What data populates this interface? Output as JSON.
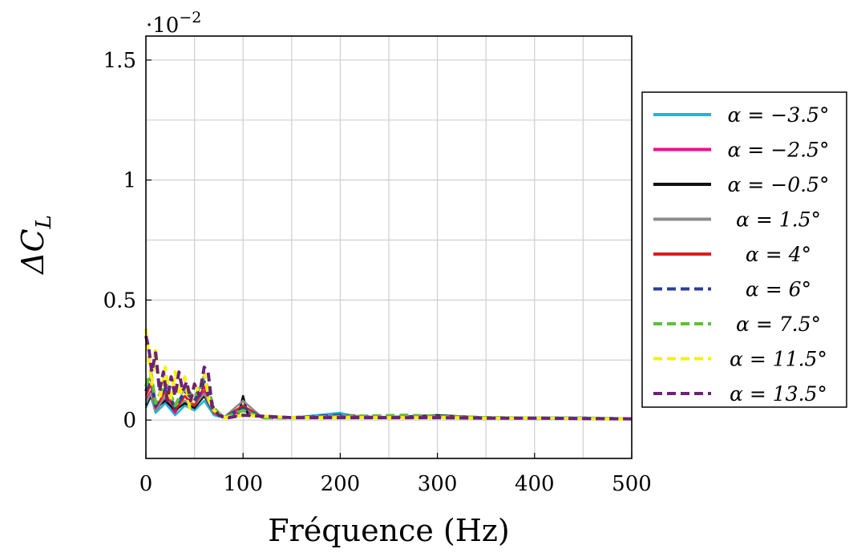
{
  "chart_data": {
    "type": "line",
    "title": "",
    "xlabel": "Fréquence (Hz)",
    "ylabel": "ΔC_L",
    "ylabel_base": "ΔC",
    "ylabel_sub": "L",
    "y_multiplier_base": "·10",
    "y_multiplier_exp": "−2",
    "xlim": [
      0,
      500
    ],
    "ylim": [
      -0.16,
      1.6
    ],
    "grid": true,
    "legend_position": "right",
    "x_ticks": [
      {
        "value": 0,
        "label": "0"
      },
      {
        "value": 100,
        "label": "100"
      },
      {
        "value": 200,
        "label": "200"
      },
      {
        "value": 300,
        "label": "300"
      },
      {
        "value": 400,
        "label": "400"
      },
      {
        "value": 500,
        "label": "500"
      }
    ],
    "y_ticks": [
      {
        "value": 0,
        "label": "0"
      },
      {
        "value": 0.5,
        "label": "0.5"
      },
      {
        "value": 1,
        "label": "1"
      },
      {
        "value": 1.5,
        "label": "1.5"
      }
    ],
    "series": [
      {
        "name": "α = −3.5°",
        "color": "#1fb3e6",
        "dash": false,
        "points": [
          [
            0,
            0.05
          ],
          [
            5,
            0.1
          ],
          [
            10,
            0.03
          ],
          [
            20,
            0.07
          ],
          [
            30,
            0.02
          ],
          [
            40,
            0.06
          ],
          [
            50,
            0.04
          ],
          [
            60,
            0.08
          ],
          [
            70,
            0.02
          ],
          [
            80,
            0.01
          ],
          [
            100,
            0.05
          ],
          [
            120,
            0.01
          ],
          [
            150,
            0.01
          ],
          [
            200,
            0.03
          ],
          [
            220,
            0.01
          ],
          [
            260,
            0.015
          ],
          [
            300,
            0.02
          ],
          [
            350,
            0.01
          ],
          [
            400,
            0.01
          ],
          [
            450,
            0.01
          ],
          [
            500,
            0.005
          ]
        ]
      },
      {
        "name": "α = −2.5°",
        "color": "#e6138c",
        "dash": false,
        "points": [
          [
            0,
            0.08
          ],
          [
            5,
            0.12
          ],
          [
            10,
            0.04
          ],
          [
            20,
            0.09
          ],
          [
            30,
            0.03
          ],
          [
            40,
            0.1
          ],
          [
            50,
            0.05
          ],
          [
            60,
            0.12
          ],
          [
            70,
            0.03
          ],
          [
            80,
            0.01
          ],
          [
            100,
            0.04
          ],
          [
            120,
            0.01
          ],
          [
            150,
            0.01
          ],
          [
            200,
            0.02
          ],
          [
            250,
            0.01
          ],
          [
            300,
            0.015
          ],
          [
            350,
            0.01
          ],
          [
            400,
            0.008
          ],
          [
            450,
            0.008
          ],
          [
            500,
            0.005
          ]
        ]
      },
      {
        "name": "α = −0.5°",
        "color": "#111111",
        "dash": false,
        "points": [
          [
            0,
            0.06
          ],
          [
            5,
            0.1
          ],
          [
            10,
            0.05
          ],
          [
            20,
            0.08
          ],
          [
            30,
            0.04
          ],
          [
            40,
            0.07
          ],
          [
            50,
            0.05
          ],
          [
            60,
            0.1
          ],
          [
            70,
            0.03
          ],
          [
            80,
            0.01
          ],
          [
            95,
            0.02
          ],
          [
            100,
            0.1
          ],
          [
            105,
            0.02
          ],
          [
            150,
            0.01
          ],
          [
            200,
            0.015
          ],
          [
            250,
            0.01
          ],
          [
            300,
            0.02
          ],
          [
            350,
            0.01
          ],
          [
            400,
            0.008
          ],
          [
            450,
            0.008
          ],
          [
            500,
            0.005
          ]
        ]
      },
      {
        "name": "α = 1.5°",
        "color": "#8c8c8c",
        "dash": false,
        "points": [
          [
            0,
            0.07
          ],
          [
            5,
            0.11
          ],
          [
            10,
            0.04
          ],
          [
            20,
            0.1
          ],
          [
            30,
            0.05
          ],
          [
            40,
            0.08
          ],
          [
            50,
            0.06
          ],
          [
            60,
            0.11
          ],
          [
            70,
            0.03
          ],
          [
            80,
            0.01
          ],
          [
            100,
            0.08
          ],
          [
            120,
            0.01
          ],
          [
            150,
            0.01
          ],
          [
            200,
            0.02
          ],
          [
            250,
            0.01
          ],
          [
            300,
            0.015
          ],
          [
            350,
            0.01
          ],
          [
            400,
            0.008
          ],
          [
            450,
            0.008
          ],
          [
            500,
            0.005
          ]
        ]
      },
      {
        "name": "α = 4°",
        "color": "#e11b1b",
        "dash": false,
        "points": [
          [
            0,
            0.1
          ],
          [
            5,
            0.15
          ],
          [
            10,
            0.05
          ],
          [
            20,
            0.12
          ],
          [
            30,
            0.04
          ],
          [
            40,
            0.1
          ],
          [
            50,
            0.06
          ],
          [
            60,
            0.14
          ],
          [
            70,
            0.03
          ],
          [
            80,
            0.01
          ],
          [
            100,
            0.06
          ],
          [
            120,
            0.01
          ],
          [
            150,
            0.01
          ],
          [
            200,
            0.015
          ],
          [
            250,
            0.01
          ],
          [
            300,
            0.015
          ],
          [
            350,
            0.01
          ],
          [
            400,
            0.008
          ],
          [
            450,
            0.008
          ],
          [
            500,
            0.005
          ]
        ]
      },
      {
        "name": "α = 6°",
        "color": "#2c3d99",
        "dash": true,
        "points": [
          [
            0,
            0.12
          ],
          [
            5,
            0.18
          ],
          [
            10,
            0.06
          ],
          [
            20,
            0.14
          ],
          [
            30,
            0.05
          ],
          [
            40,
            0.12
          ],
          [
            50,
            0.08
          ],
          [
            60,
            0.16
          ],
          [
            70,
            0.04
          ],
          [
            80,
            0.01
          ],
          [
            100,
            0.05
          ],
          [
            120,
            0.01
          ],
          [
            150,
            0.01
          ],
          [
            200,
            0.02
          ],
          [
            250,
            0.01
          ],
          [
            300,
            0.015
          ],
          [
            350,
            0.01
          ],
          [
            400,
            0.008
          ],
          [
            450,
            0.008
          ],
          [
            500,
            0.005
          ]
        ]
      },
      {
        "name": "α = 7.5°",
        "color": "#5cbf3a",
        "dash": true,
        "points": [
          [
            0,
            0.14
          ],
          [
            5,
            0.2
          ],
          [
            10,
            0.07
          ],
          [
            20,
            0.16
          ],
          [
            30,
            0.06
          ],
          [
            40,
            0.14
          ],
          [
            50,
            0.09
          ],
          [
            60,
            0.18
          ],
          [
            70,
            0.05
          ],
          [
            80,
            0.01
          ],
          [
            100,
            0.04
          ],
          [
            120,
            0.01
          ],
          [
            150,
            0.01
          ],
          [
            200,
            0.015
          ],
          [
            270,
            0.02
          ],
          [
            300,
            0.015
          ],
          [
            350,
            0.01
          ],
          [
            400,
            0.008
          ],
          [
            450,
            0.008
          ],
          [
            500,
            0.005
          ]
        ]
      },
      {
        "name": "α = 11.5°",
        "color": "#f7ef0f",
        "dash": true,
        "points": [
          [
            0,
            0.38
          ],
          [
            3,
            0.25
          ],
          [
            6,
            0.15
          ],
          [
            10,
            0.3
          ],
          [
            15,
            0.1
          ],
          [
            20,
            0.22
          ],
          [
            25,
            0.08
          ],
          [
            30,
            0.2
          ],
          [
            35,
            0.1
          ],
          [
            40,
            0.18
          ],
          [
            45,
            0.05
          ],
          [
            50,
            0.14
          ],
          [
            55,
            0.12
          ],
          [
            60,
            0.2
          ],
          [
            65,
            0.08
          ],
          [
            70,
            0.04
          ],
          [
            80,
            0.01
          ],
          [
            100,
            0.02
          ],
          [
            150,
            0.01
          ],
          [
            200,
            0.01
          ],
          [
            250,
            0.01
          ],
          [
            300,
            0.01
          ],
          [
            350,
            0.008
          ],
          [
            400,
            0.008
          ],
          [
            450,
            0.006
          ],
          [
            500,
            0.005
          ]
        ]
      },
      {
        "name": "α = 13.5°",
        "color": "#6b2375",
        "dash": true,
        "points": [
          [
            0,
            0.35
          ],
          [
            3,
            0.3
          ],
          [
            6,
            0.2
          ],
          [
            10,
            0.28
          ],
          [
            14,
            0.12
          ],
          [
            18,
            0.2
          ],
          [
            22,
            0.08
          ],
          [
            26,
            0.18
          ],
          [
            30,
            0.1
          ],
          [
            34,
            0.2
          ],
          [
            38,
            0.12
          ],
          [
            42,
            0.16
          ],
          [
            46,
            0.08
          ],
          [
            50,
            0.15
          ],
          [
            55,
            0.1
          ],
          [
            60,
            0.22
          ],
          [
            64,
            0.2
          ],
          [
            68,
            0.06
          ],
          [
            75,
            0.02
          ],
          [
            85,
            0.01
          ],
          [
            100,
            0.02
          ],
          [
            150,
            0.01
          ],
          [
            200,
            0.01
          ],
          [
            250,
            0.01
          ],
          [
            300,
            0.01
          ],
          [
            350,
            0.008
          ],
          [
            400,
            0.008
          ],
          [
            450,
            0.006
          ],
          [
            500,
            0.005
          ]
        ]
      }
    ]
  }
}
